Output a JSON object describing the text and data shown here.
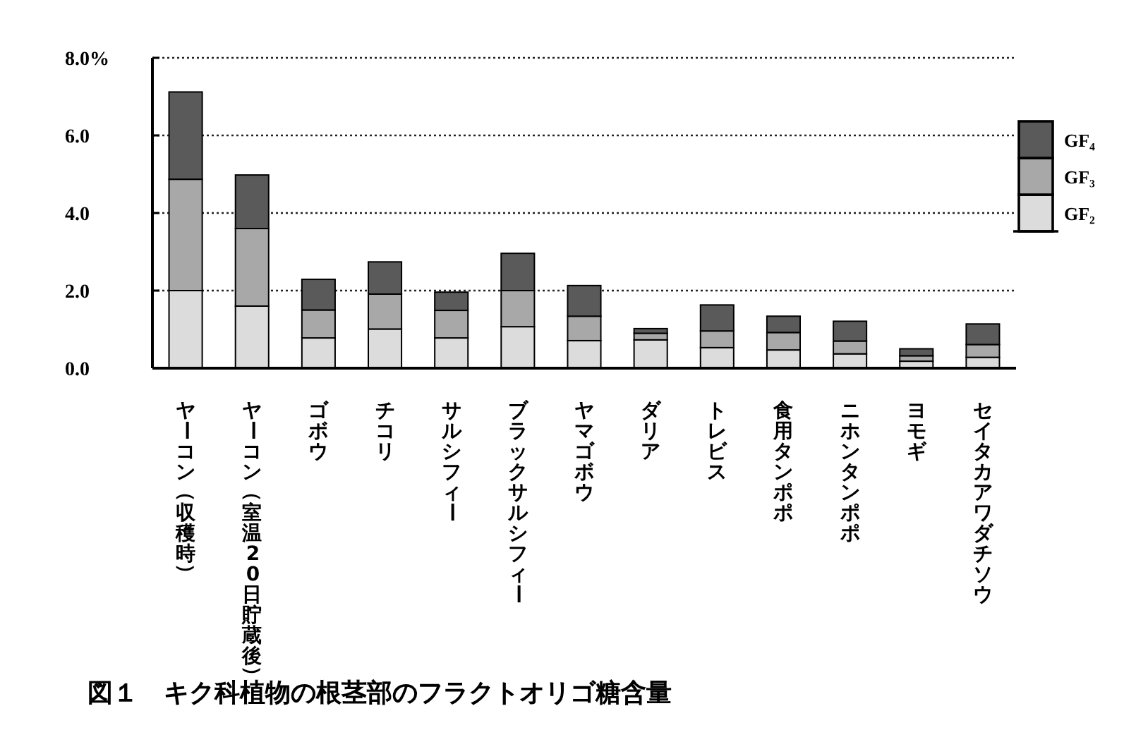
{
  "chart_data": {
    "type": "bar",
    "stacked": true,
    "title": "図１　キク科植物の根茎部のフラクトオリゴ糖含量",
    "categories": [
      "ヤーコン（収穫時）",
      "ヤーコン（室温20日貯蔵後）",
      "ゴボウ",
      "チコリ",
      "サルシフィー",
      "ブラックサルシフィー",
      "ヤマゴボウ",
      "ダリア",
      "トレビス",
      "食用タンポポ",
      "ニホンタンポポ",
      "ヨモギ",
      "セイタカアワダチソウ"
    ],
    "series": [
      {
        "name": "GF₂",
        "color": "#dcdcdc",
        "values": [
          2.0,
          1.6,
          0.78,
          1.01,
          0.78,
          1.07,
          0.71,
          0.73,
          0.53,
          0.47,
          0.37,
          0.18,
          0.28
        ]
      },
      {
        "name": "GF₃",
        "color": "#a8a8a8",
        "values": [
          2.87,
          2.0,
          0.72,
          0.9,
          0.71,
          0.93,
          0.63,
          0.17,
          0.43,
          0.45,
          0.33,
          0.14,
          0.33
        ]
      },
      {
        "name": "GF₄",
        "color": "#5a5a5a",
        "values": [
          2.25,
          1.38,
          0.79,
          0.83,
          0.47,
          0.96,
          0.79,
          0.12,
          0.67,
          0.42,
          0.51,
          0.18,
          0.53
        ]
      }
    ],
    "ylim": [
      0,
      8
    ],
    "yticks": [
      {
        "value": 0,
        "label": "0.0"
      },
      {
        "value": 2,
        "label": "2.0"
      },
      {
        "value": 4,
        "label": "4.0"
      },
      {
        "value": 6,
        "label": "6.0"
      },
      {
        "value": 8,
        "label": "8.0%"
      }
    ],
    "grid": "y",
    "legend": "right"
  }
}
